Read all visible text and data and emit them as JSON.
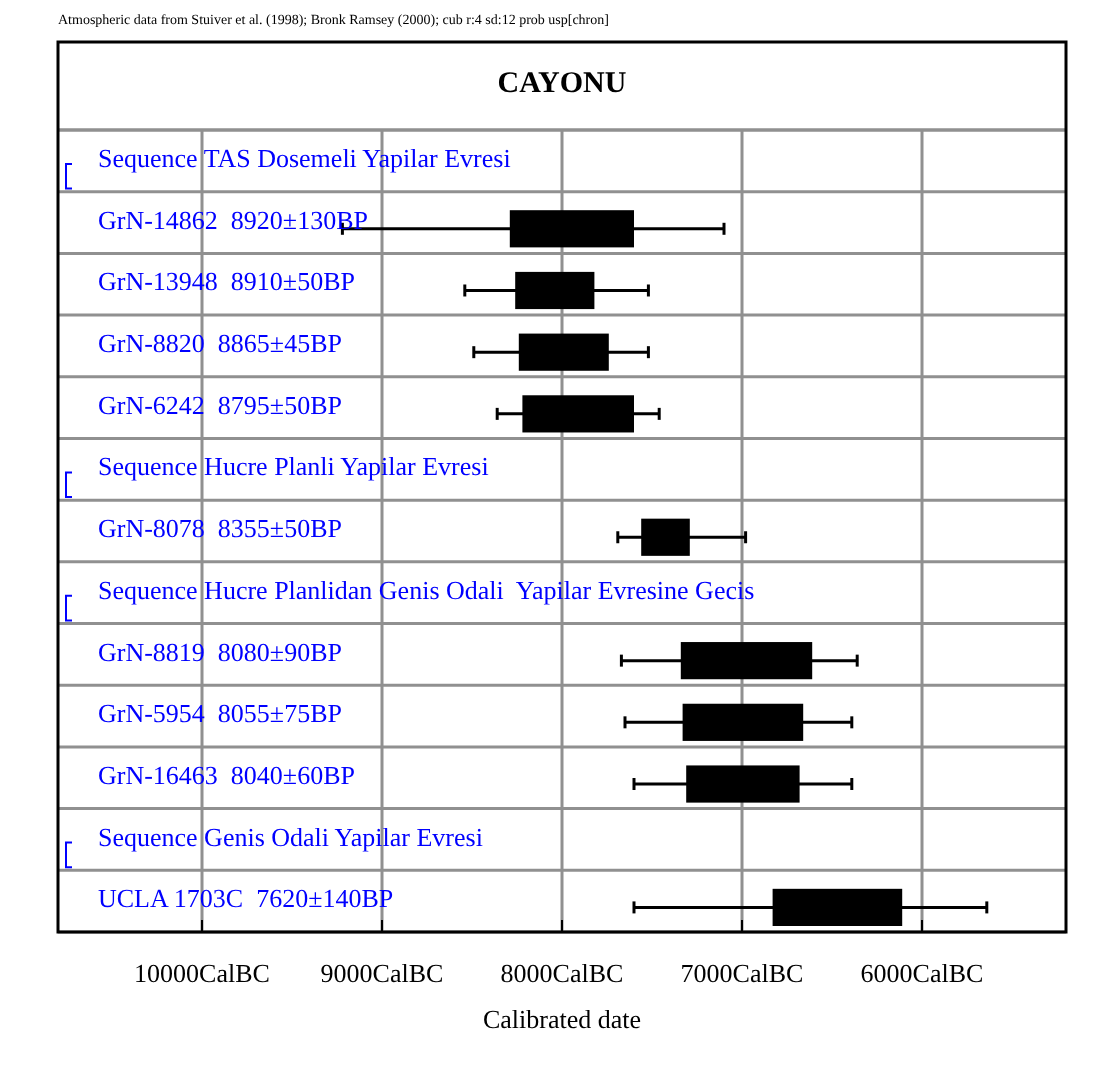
{
  "chart_data": {
    "type": "bar",
    "orientation": "horizontal",
    "title": "CAYONU",
    "xlabel": "Calibrated date",
    "annotations": [
      "Atmospheric data from Stuiver et al. (1998); Bronk Ramsey (2000); cub r:4 sd:12 prob usp[chron]"
    ],
    "categories": [
      "Sequence TAS Dosemeli Yapilar Evresi",
      "GrN-14862  8920±130BP",
      "GrN-13948  8910±50BP",
      "GrN-8820  8865±45BP",
      "GrN-6242  8795±50BP",
      "Sequence Hucre Planli Yapilar Evresi",
      "GrN-8078  8355±50BP",
      "Sequence Hucre Planlidan Genis Odali  Yapilar Evresine Gecis",
      "GrN-8819  8080±90BP",
      "GrN-5954  8055±75BP",
      "GrN-16463  8040±60BP",
      "Sequence Genis Odali Yapilar Evresi",
      "UCLA 1703C  7620±140BP"
    ],
    "base": [
      null,
      -8290,
      -8260,
      -8240,
      -8220,
      null,
      -7560,
      null,
      -7340,
      -7330,
      -7310,
      null,
      -6830
    ],
    "values": [
      null,
      690,
      440,
      500,
      620,
      null,
      270,
      null,
      730,
      670,
      630,
      null,
      720
    ],
    "errors": [
      null,
      [
        -9220,
        -7100
      ],
      [
        -8540,
        -7520
      ],
      [
        -8490,
        -7520
      ],
      [
        -8360,
        -7460
      ],
      null,
      [
        -7690,
        -6980
      ],
      null,
      [
        -7670,
        -6360
      ],
      [
        -7650,
        -6390
      ],
      [
        -7600,
        -6390
      ],
      null,
      [
        -7600,
        -5640
      ]
    ],
    "color": "#000000",
    "xlim": [
      -10800,
      -5200
    ],
    "xticks": [
      {
        "value": -10000,
        "label": "10000CalBC"
      },
      {
        "value": -9000,
        "label": "9000CalBC"
      },
      {
        "value": -8000,
        "label": "8000CalBC"
      },
      {
        "value": -7000,
        "label": "7000CalBC"
      },
      {
        "value": -6000,
        "label": "6000CalBC"
      }
    ],
    "grid": true
  }
}
